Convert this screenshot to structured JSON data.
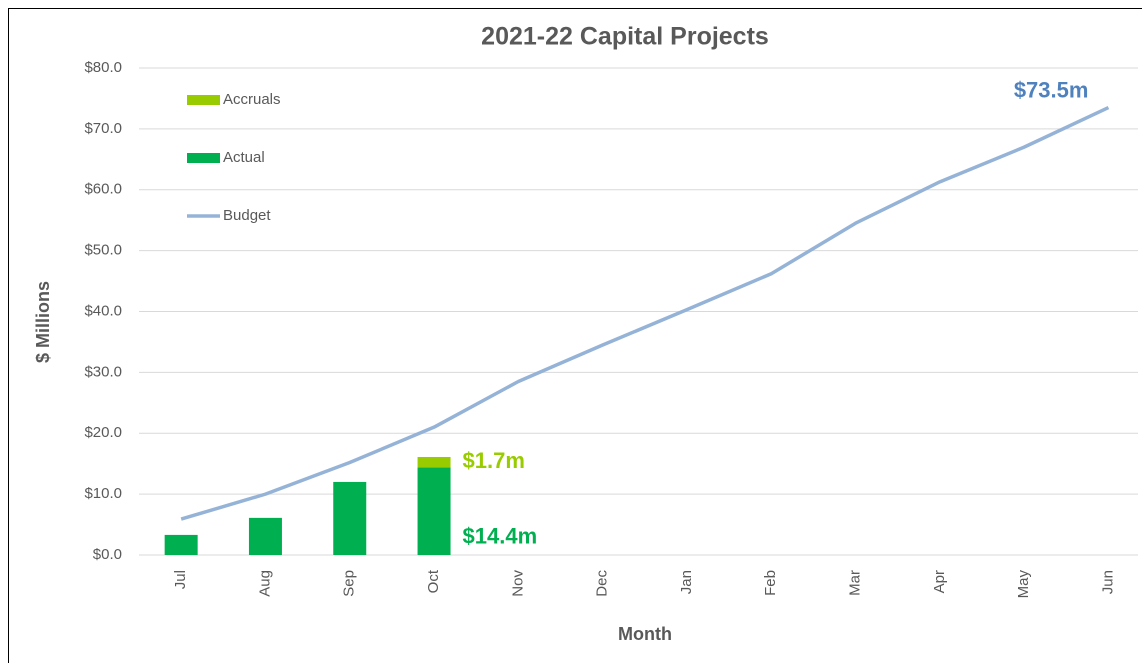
{
  "chart_data": {
    "type": "bar-line",
    "title": "2021-22 Capital Projects",
    "x_label": "Month",
    "y_label": "$ Millions",
    "categories": [
      "Jul",
      "Aug",
      "Sep",
      "Oct",
      "Nov",
      "Dec",
      "Jan",
      "Feb",
      "Mar",
      "Apr",
      "May",
      "Jun"
    ],
    "series": [
      {
        "name": "Accruals",
        "type": "bar",
        "color": "#99cc00",
        "values": [
          null,
          null,
          null,
          1.7,
          null,
          null,
          null,
          null,
          null,
          null,
          null,
          null
        ],
        "value_labels": [
          null,
          null,
          null,
          "$1.7m",
          null,
          null,
          null,
          null,
          null,
          null,
          null,
          null
        ]
      },
      {
        "name": "Actual",
        "type": "bar",
        "color": "#00b050",
        "values": [
          3.3,
          6.1,
          12.0,
          14.4,
          null,
          null,
          null,
          null,
          null,
          null,
          null,
          null
        ],
        "value_labels": [
          null,
          null,
          null,
          "$14.4m",
          null,
          null,
          null,
          null,
          null,
          null,
          null,
          null
        ]
      },
      {
        "name": "Budget",
        "type": "line",
        "color": "#95b3d7",
        "label_color": "#4f81bd",
        "values": [
          5.9,
          10.0,
          15.2,
          21.0,
          28.5,
          34.5,
          40.3,
          46.2,
          54.5,
          61.3,
          67.0,
          73.5
        ],
        "value_labels": [
          null,
          null,
          null,
          null,
          null,
          null,
          null,
          null,
          null,
          null,
          null,
          "$73.5m"
        ]
      }
    ],
    "ylim": [
      0,
      80
    ],
    "yticks": [
      {
        "value": 0,
        "label": "$0.0"
      },
      {
        "value": 10,
        "label": "$10.0"
      },
      {
        "value": 20,
        "label": "$20.0"
      },
      {
        "value": 30,
        "label": "$30.0"
      },
      {
        "value": 40,
        "label": "$40.0"
      },
      {
        "value": 50,
        "label": "$50.0"
      },
      {
        "value": 60,
        "label": "$60.0"
      },
      {
        "value": 70,
        "label": "$70.0"
      },
      {
        "value": 80,
        "label": "$80.0"
      }
    ],
    "grid": true,
    "legend": "top-left"
  }
}
